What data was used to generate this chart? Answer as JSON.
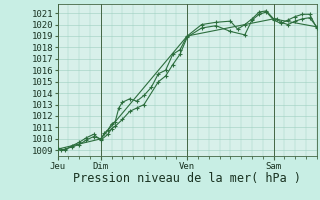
{
  "bg_color": "#c8eee4",
  "plot_bg_color": "#d8f0ea",
  "grid_color": "#9ecfbf",
  "line_color": "#2d6e3e",
  "marker_color": "#2d6e3e",
  "ylabel_ticks": [
    1009,
    1010,
    1011,
    1012,
    1013,
    1014,
    1015,
    1016,
    1017,
    1018,
    1019,
    1020,
    1021
  ],
  "ylim": [
    1008.5,
    1021.8
  ],
  "xlabel": "Pression niveau de la mer( hPa )",
  "xlabel_fontsize": 8.5,
  "tick_fontsize": 6.5,
  "xtick_labels": [
    "Jeu",
    "Dim",
    "Ven",
    "Sam"
  ],
  "xtick_positions": [
    0,
    24,
    72,
    120
  ],
  "vlines": [
    0,
    24,
    72,
    120
  ],
  "total_hours": 144,
  "line1_x": [
    0,
    2,
    4,
    8,
    12,
    16,
    20,
    24,
    26,
    28,
    30,
    32,
    34,
    36,
    40,
    44,
    48,
    52,
    56,
    60,
    64,
    68,
    72,
    80,
    88,
    96,
    100,
    104,
    108,
    112,
    116,
    120,
    122,
    124,
    128,
    132,
    136,
    140,
    144
  ],
  "line1_y": [
    1009.1,
    1009.0,
    1009.1,
    1009.3,
    1009.5,
    1009.9,
    1010.2,
    1010.0,
    1010.5,
    1010.8,
    1011.3,
    1011.5,
    1012.7,
    1013.2,
    1013.5,
    1013.3,
    1013.8,
    1014.5,
    1015.7,
    1016.0,
    1017.4,
    1017.8,
    1019.0,
    1020.0,
    1020.2,
    1020.3,
    1019.6,
    1020.0,
    1020.5,
    1021.1,
    1021.2,
    1020.5,
    1020.5,
    1020.2,
    1020.0,
    1020.3,
    1020.5,
    1020.6,
    1019.8
  ],
  "line2_x": [
    0,
    4,
    8,
    12,
    16,
    20,
    24,
    28,
    30,
    32,
    36,
    40,
    44,
    48,
    56,
    60,
    64,
    68,
    72,
    80,
    88,
    96,
    104,
    108,
    112,
    116,
    120,
    124,
    128,
    132,
    136,
    140,
    144
  ],
  "line2_y": [
    1009.2,
    1009.0,
    1009.4,
    1009.7,
    1010.1,
    1010.4,
    1009.9,
    1010.4,
    1010.9,
    1011.1,
    1011.7,
    1012.4,
    1012.7,
    1013.0,
    1015.0,
    1015.5,
    1016.5,
    1017.4,
    1018.9,
    1019.7,
    1019.9,
    1019.4,
    1019.1,
    1020.4,
    1020.9,
    1021.1,
    1020.4,
    1020.1,
    1020.4,
    1020.7,
    1020.9,
    1020.9,
    1019.7
  ],
  "line3_x": [
    0,
    24,
    72,
    120,
    144
  ],
  "line3_y": [
    1009.1,
    1010.0,
    1019.0,
    1020.5,
    1019.8
  ]
}
